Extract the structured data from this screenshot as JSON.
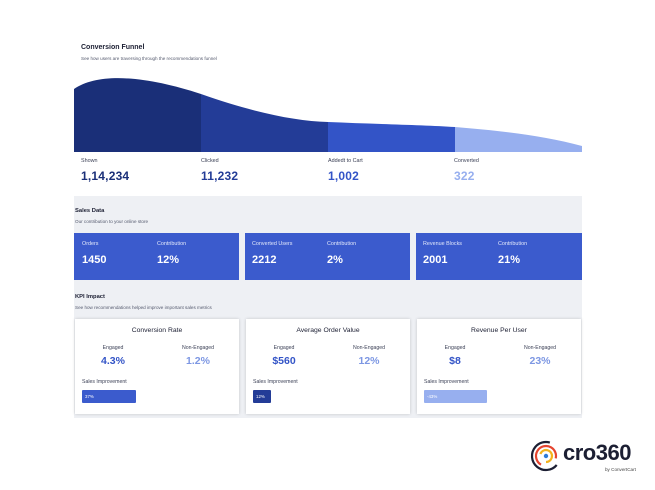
{
  "funnel": {
    "title": "Conversion Funnel",
    "subtitle": "See how users are traversing through the recommendations funnel",
    "stages": [
      {
        "label": "Shown",
        "value": "1,14,234",
        "color": "#1a2f78"
      },
      {
        "label": "Clicked",
        "value": "11,232",
        "color": "#233c97"
      },
      {
        "label": "Addedt to Cart",
        "value": "1,002",
        "color": "#3354c7"
      },
      {
        "label": "Converted",
        "value": "322",
        "color": "#97afef"
      }
    ]
  },
  "sales": {
    "title": "Sales Data",
    "subtitle": "Our contribution to your online store",
    "cards": [
      {
        "label": "Orders",
        "value": "1450",
        "contribution_label": "Contribution",
        "contribution": "12%"
      },
      {
        "label": "Converted Users",
        "value": "2212",
        "contribution_label": "Contribution",
        "contribution": "2%"
      },
      {
        "label": "Revenue Blocks",
        "value": "2001",
        "contribution_label": "Contribution",
        "contribution": "21%"
      }
    ]
  },
  "kpi": {
    "title": "KPI Impact",
    "subtitle": "See how recommendations helped improve important sales metrics",
    "cards": [
      {
        "title": "Conversion Rate",
        "engaged_label": "Engaged",
        "engaged": "4.3%",
        "non_engaged_label": "Non-Engaged",
        "non_engaged": "1.2%",
        "improvement_label": "Sales Improvement",
        "improvement": "37%",
        "improvement_fraction": 0.37,
        "bar_color": "#3b5bcd"
      },
      {
        "title": "Average Order Value",
        "engaged_label": "Engaged",
        "engaged": "$560",
        "non_engaged_label": "Non-Engaged",
        "non_engaged": "12%",
        "improvement_label": "Sales Improvement",
        "improvement": "12%",
        "improvement_fraction": 0.12,
        "bar_color": "#233c97"
      },
      {
        "title": "Revenue Per User",
        "engaged_label": "Engaged",
        "engaged": "$8",
        "non_engaged_label": "Non-Engaged",
        "non_engaged": "23%",
        "improvement_label": "Sales Improvement",
        "improvement": "-43%",
        "improvement_fraction": 0.43,
        "bar_color": "#97afef"
      }
    ]
  },
  "colors": {
    "engaged": "#3354c7",
    "non_engaged": "#7d97e3"
  },
  "logo": {
    "word": "cro360",
    "tagline": "by ConvertCart"
  }
}
